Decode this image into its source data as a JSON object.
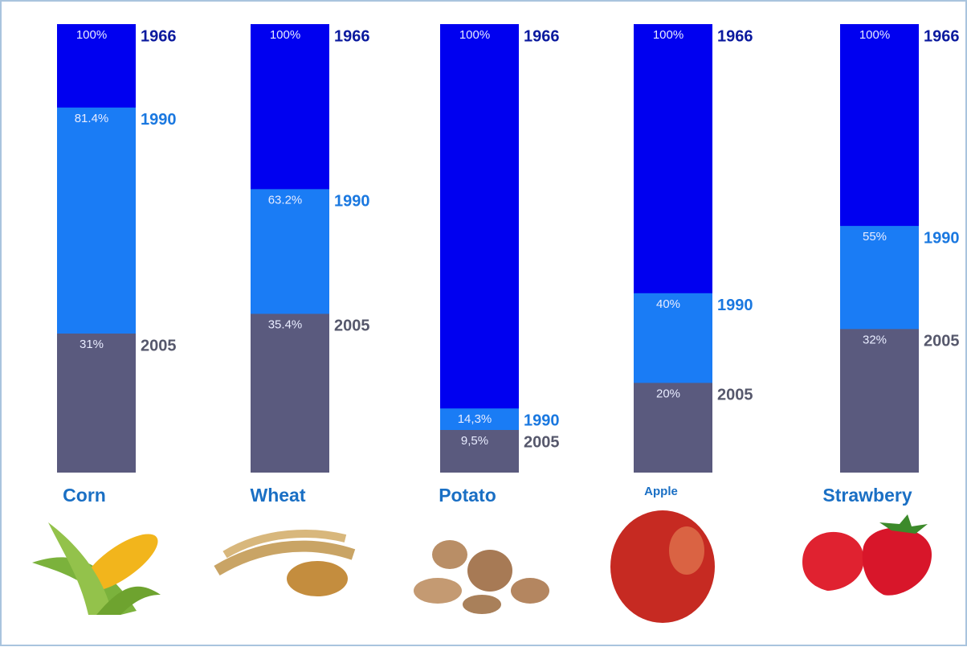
{
  "chart_data": {
    "type": "bar",
    "categories": [
      "Corn",
      "Wheat",
      "Potato",
      "Apple",
      "Strawbery"
    ],
    "series": [
      {
        "name": "1966",
        "color": "#0000f0",
        "values": [
          100,
          100,
          100,
          100,
          100
        ],
        "value_labels": [
          "100%",
          "100%",
          "100%",
          "100%",
          "100%"
        ]
      },
      {
        "name": "1990",
        "color": "#1a7cf5",
        "values": [
          81.4,
          63.2,
          14.3,
          40,
          55
        ],
        "value_labels": [
          "81.4%",
          "63.2%",
          "14,3%",
          "40%",
          "55%"
        ]
      },
      {
        "name": "2005",
        "color": "#5a5a7e",
        "values": [
          31,
          35.4,
          9.5,
          20,
          32
        ],
        "value_labels": [
          "31%",
          "35.4%",
          "9,5%",
          "20%",
          "32%"
        ]
      }
    ]
  }
}
